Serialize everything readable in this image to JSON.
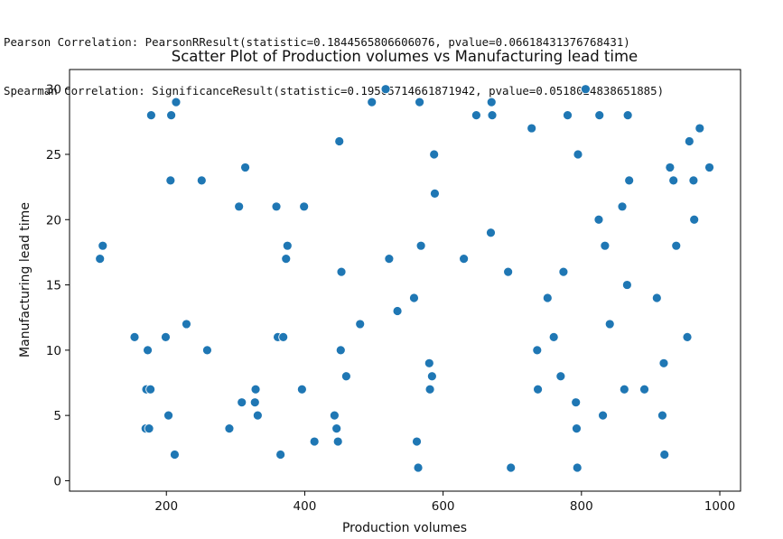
{
  "output": {
    "line1": "Pearson Correlation: PearsonRResult(statistic=0.1844565806606076, pvalue=0.06618431376768431)",
    "line2": "Spearman Correlation: SignificanceResult(statistic=0.19505714661871942, pvalue=0.0518024838651885)"
  },
  "chart_data": {
    "type": "scatter",
    "title": "Scatter Plot of Production volumes vs Manufacturing lead time",
    "xlabel": "Production volumes",
    "ylabel": "Manufacturing lead time",
    "xlim": [
      60,
      1030
    ],
    "ylim": [
      -0.8,
      31.5
    ],
    "xticks": [
      200,
      400,
      600,
      800,
      1000
    ],
    "yticks": [
      0,
      5,
      10,
      15,
      20,
      25,
      30
    ],
    "grid": false,
    "marker_color": "#1f77b4",
    "points": [
      {
        "x": 104,
        "y": 17
      },
      {
        "x": 108,
        "y": 18
      },
      {
        "x": 154,
        "y": 11
      },
      {
        "x": 170,
        "y": 4
      },
      {
        "x": 171,
        "y": 7
      },
      {
        "x": 173,
        "y": 10
      },
      {
        "x": 175,
        "y": 4
      },
      {
        "x": 177,
        "y": 7
      },
      {
        "x": 178,
        "y": 28
      },
      {
        "x": 199,
        "y": 11
      },
      {
        "x": 203,
        "y": 5
      },
      {
        "x": 206,
        "y": 23
      },
      {
        "x": 207,
        "y": 28
      },
      {
        "x": 212,
        "y": 2
      },
      {
        "x": 214,
        "y": 29
      },
      {
        "x": 229,
        "y": 12
      },
      {
        "x": 251,
        "y": 23
      },
      {
        "x": 259,
        "y": 10
      },
      {
        "x": 291,
        "y": 4
      },
      {
        "x": 305,
        "y": 21
      },
      {
        "x": 309,
        "y": 6
      },
      {
        "x": 314,
        "y": 24
      },
      {
        "x": 328,
        "y": 6
      },
      {
        "x": 329,
        "y": 7
      },
      {
        "x": 332,
        "y": 5
      },
      {
        "x": 359,
        "y": 21
      },
      {
        "x": 361,
        "y": 11
      },
      {
        "x": 365,
        "y": 2
      },
      {
        "x": 369,
        "y": 11
      },
      {
        "x": 373,
        "y": 17
      },
      {
        "x": 375,
        "y": 18
      },
      {
        "x": 396,
        "y": 7
      },
      {
        "x": 399,
        "y": 21
      },
      {
        "x": 414,
        "y": 3
      },
      {
        "x": 443,
        "y": 5
      },
      {
        "x": 446,
        "y": 4
      },
      {
        "x": 448,
        "y": 3
      },
      {
        "x": 450,
        "y": 26
      },
      {
        "x": 452,
        "y": 10
      },
      {
        "x": 453,
        "y": 16
      },
      {
        "x": 460,
        "y": 8
      },
      {
        "x": 480,
        "y": 12
      },
      {
        "x": 497,
        "y": 29
      },
      {
        "x": 517,
        "y": 30
      },
      {
        "x": 522,
        "y": 17
      },
      {
        "x": 534,
        "y": 13
      },
      {
        "x": 558,
        "y": 14
      },
      {
        "x": 562,
        "y": 3
      },
      {
        "x": 564,
        "y": 1
      },
      {
        "x": 566,
        "y": 29
      },
      {
        "x": 568,
        "y": 18
      },
      {
        "x": 580,
        "y": 9
      },
      {
        "x": 581,
        "y": 7
      },
      {
        "x": 584,
        "y": 8
      },
      {
        "x": 587,
        "y": 25
      },
      {
        "x": 588,
        "y": 22
      },
      {
        "x": 630,
        "y": 17
      },
      {
        "x": 648,
        "y": 28
      },
      {
        "x": 669,
        "y": 19
      },
      {
        "x": 670,
        "y": 29
      },
      {
        "x": 671,
        "y": 28
      },
      {
        "x": 694,
        "y": 16
      },
      {
        "x": 698,
        "y": 1
      },
      {
        "x": 728,
        "y": 27
      },
      {
        "x": 736,
        "y": 10
      },
      {
        "x": 737,
        "y": 7
      },
      {
        "x": 751,
        "y": 14
      },
      {
        "x": 760,
        "y": 11
      },
      {
        "x": 770,
        "y": 8
      },
      {
        "x": 774,
        "y": 16
      },
      {
        "x": 780,
        "y": 28
      },
      {
        "x": 792,
        "y": 6
      },
      {
        "x": 793,
        "y": 4
      },
      {
        "x": 794,
        "y": 1
      },
      {
        "x": 795,
        "y": 25
      },
      {
        "x": 806,
        "y": 30
      },
      {
        "x": 825,
        "y": 20
      },
      {
        "x": 826,
        "y": 28
      },
      {
        "x": 831,
        "y": 5
      },
      {
        "x": 834,
        "y": 18
      },
      {
        "x": 841,
        "y": 12
      },
      {
        "x": 859,
        "y": 21
      },
      {
        "x": 862,
        "y": 7
      },
      {
        "x": 866,
        "y": 15
      },
      {
        "x": 867,
        "y": 28
      },
      {
        "x": 869,
        "y": 23
      },
      {
        "x": 891,
        "y": 7
      },
      {
        "x": 909,
        "y": 14
      },
      {
        "x": 917,
        "y": 5
      },
      {
        "x": 919,
        "y": 9
      },
      {
        "x": 920,
        "y": 2
      },
      {
        "x": 928,
        "y": 24
      },
      {
        "x": 933,
        "y": 23
      },
      {
        "x": 937,
        "y": 18
      },
      {
        "x": 953,
        "y": 11
      },
      {
        "x": 956,
        "y": 26
      },
      {
        "x": 962,
        "y": 23
      },
      {
        "x": 963,
        "y": 20
      },
      {
        "x": 971,
        "y": 27
      },
      {
        "x": 985,
        "y": 24
      }
    ]
  }
}
